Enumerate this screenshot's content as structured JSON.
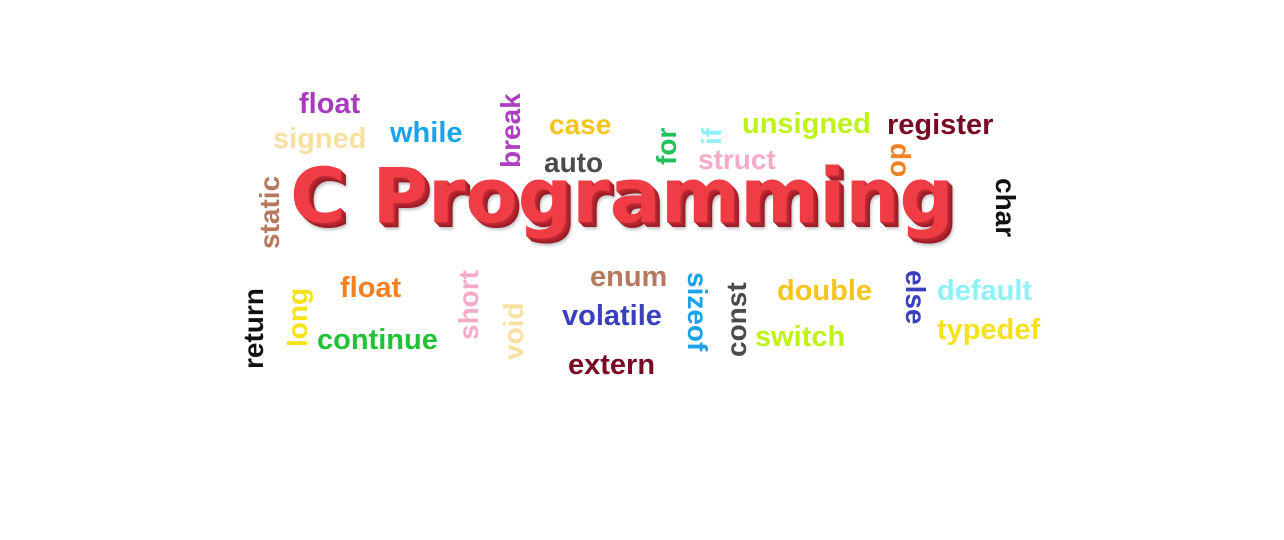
{
  "title": "C Programming",
  "colors": {
    "title": "#ef3c45",
    "title_shadow": "#a21e28"
  },
  "words": {
    "float_top": "float",
    "signed": "signed",
    "while": "while",
    "break": "break",
    "case": "case",
    "auto": "auto",
    "for": "for",
    "if": "if",
    "struct": "struct",
    "unsigned": "unsigned",
    "register": "register",
    "do": "do",
    "char": "char",
    "static": "static",
    "return": "return",
    "long": "long",
    "float_bottom": "float",
    "continue": "continue",
    "short": "short",
    "void": "void",
    "enum": "enum",
    "volatile": "volatile",
    "extern": "extern",
    "sizeof": "sizeof",
    "const": "const",
    "double": "double",
    "switch": "switch",
    "else": "else",
    "default": "default",
    "typedef": "typedef"
  }
}
